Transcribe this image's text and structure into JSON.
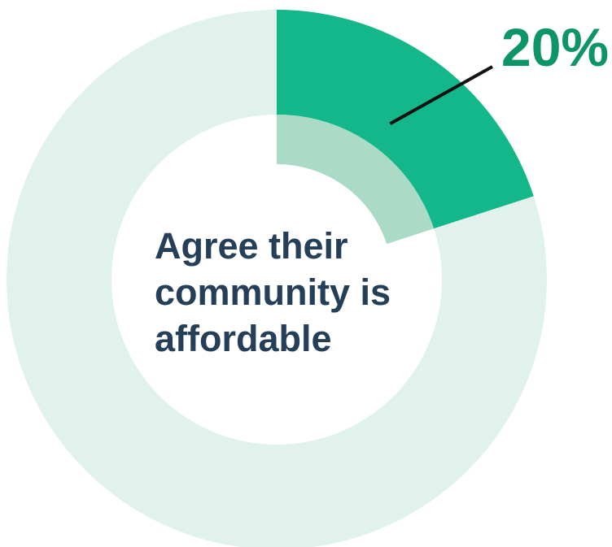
{
  "chart_data": {
    "type": "pie",
    "variant": "donut",
    "title": "",
    "center_text": [
      "Agree their",
      "community is",
      "affordable"
    ],
    "slices": [
      {
        "label": "",
        "value": 20,
        "color": "#14b789",
        "inner_color": "#abdbc7",
        "highlighted": true
      },
      {
        "label": "",
        "value": 80,
        "color": "#e0f2eb",
        "highlighted": false
      }
    ],
    "annotations": [
      {
        "text": "20%",
        "slice": 0,
        "color": "#0e9567",
        "leader_line": true
      }
    ],
    "legend": "none"
  }
}
